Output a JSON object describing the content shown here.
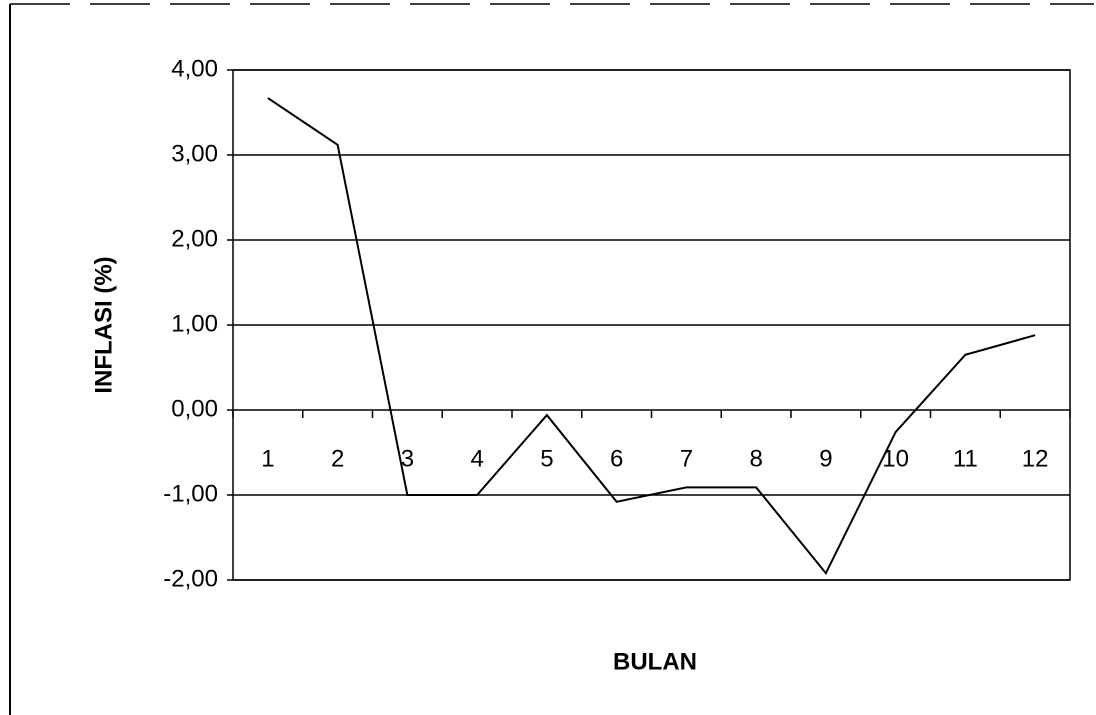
{
  "chart_data": {
    "type": "line",
    "y_label": "INFLASI (%)",
    "x_label": "BULAN",
    "categories": [
      "1",
      "2",
      "3",
      "4",
      "5",
      "6",
      "7",
      "8",
      "9",
      "10",
      "11",
      "12"
    ],
    "series": [
      {
        "name": "Inflasi",
        "color": "#000000",
        "values": [
          3.67,
          3.12,
          -1.0,
          -1.0,
          -0.06,
          -1.08,
          -0.91,
          -0.91,
          -1.92,
          -0.26,
          0.65,
          0.88
        ]
      }
    ],
    "ylim": [
      -2,
      4
    ],
    "yticks": [
      {
        "value": -2,
        "label": "-2,00"
      },
      {
        "value": -1,
        "label": "-1,00"
      },
      {
        "value": 0,
        "label": "0,00"
      },
      {
        "value": 1,
        "label": "1,00"
      },
      {
        "value": 2,
        "label": "2,00"
      },
      {
        "value": 3,
        "label": "3,00"
      },
      {
        "value": 4,
        "label": "4,00"
      }
    ],
    "grid": true
  }
}
